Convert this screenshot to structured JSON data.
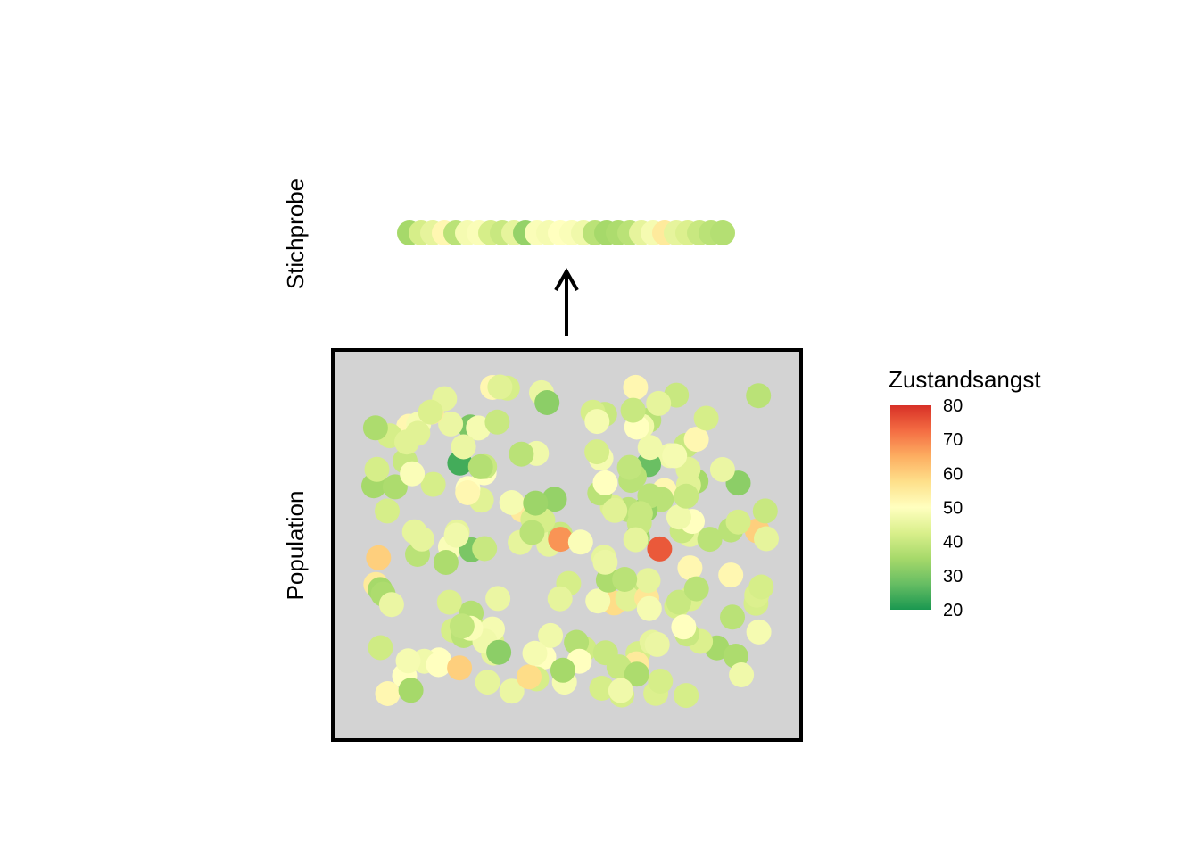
{
  "chart_data": {
    "type": "scatter",
    "title": "",
    "labels": {
      "sample": "Stichprobe",
      "population": "Population"
    },
    "legend": {
      "title": "Zustandsangst",
      "ticks": [
        80,
        70,
        60,
        50,
        40,
        30,
        20
      ],
      "range": [
        20,
        80
      ],
      "placement": "right",
      "colors": [
        "#1a9850",
        "#66bd63",
        "#a6d96a",
        "#d9ef8b",
        "#ffffbf",
        "#fee08b",
        "#fdae61",
        "#f46d43",
        "#d73027"
      ]
    },
    "population_box": {
      "fill": "#d3d3d3",
      "border": "#000000"
    },
    "arrow": {
      "from": "population",
      "to": "sample"
    },
    "sample_values": [
      35,
      42,
      45,
      52,
      38,
      48,
      49,
      42,
      40,
      45,
      33,
      49,
      48,
      50,
      49,
      47,
      38,
      35,
      36,
      38,
      45,
      48,
      55,
      45,
      43,
      40,
      38,
      37
    ],
    "population_values": [
      38,
      42,
      40,
      50,
      55,
      52,
      40,
      48,
      42,
      35,
      45,
      38,
      44,
      36,
      48,
      52,
      42,
      45,
      60,
      47,
      50,
      35,
      40,
      38,
      40,
      33,
      28,
      55,
      42,
      46,
      30,
      52,
      50,
      47,
      45,
      41,
      58,
      60,
      45,
      38,
      48,
      49,
      52,
      55,
      38,
      43,
      40,
      45,
      36,
      42,
      48,
      50,
      40,
      47,
      45,
      38,
      42,
      35,
      45,
      42,
      40,
      52,
      30,
      44,
      34,
      58,
      47,
      42,
      40,
      46,
      48,
      50,
      38,
      42,
      37,
      44,
      40,
      47,
      42,
      43,
      52,
      48,
      42,
      38,
      45,
      32,
      48,
      46,
      24,
      42,
      37,
      43,
      40,
      75,
      56,
      48,
      40,
      45,
      33,
      45,
      38,
      42,
      50,
      47,
      44,
      46,
      42,
      58,
      38,
      34,
      50,
      45,
      43,
      40,
      55,
      48,
      36,
      42,
      38,
      35,
      47,
      42,
      50,
      46,
      60,
      44,
      32,
      40,
      47,
      43,
      48,
      55,
      52,
      68,
      36,
      40,
      45,
      49,
      42,
      48,
      50,
      38,
      40,
      45,
      47,
      52,
      40,
      46,
      36,
      38,
      43,
      45,
      49,
      48,
      40,
      42,
      38,
      44,
      35,
      52,
      48,
      46,
      42,
      50,
      40,
      45,
      38,
      36,
      44,
      40,
      32,
      42,
      47,
      50,
      38,
      45,
      41,
      48,
      39,
      43,
      46,
      40,
      37,
      44,
      49,
      42,
      35,
      46,
      40,
      36,
      43,
      38,
      47,
      39,
      42
    ]
  }
}
